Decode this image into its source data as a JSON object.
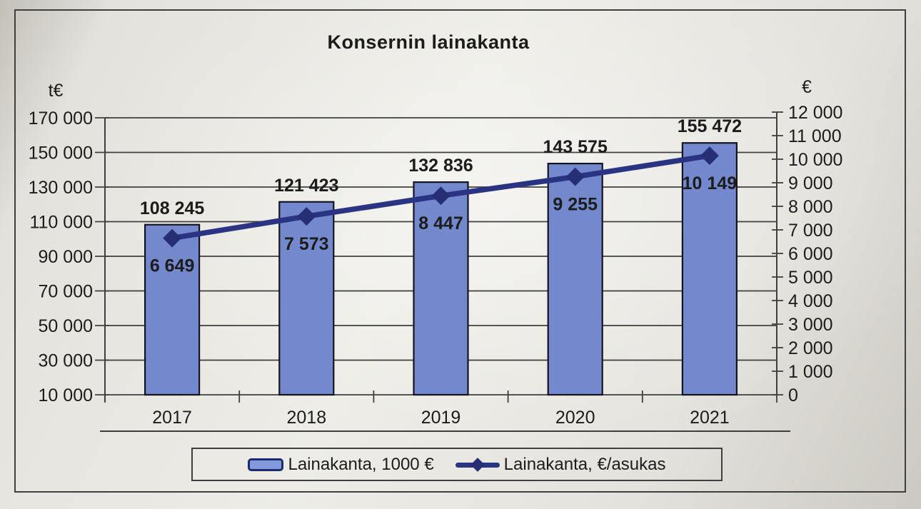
{
  "chart_data": {
    "type": "combo-bar-line",
    "title": "Konsernin lainakanta",
    "categories": [
      "2017",
      "2018",
      "2019",
      "2020",
      "2021"
    ],
    "series": [
      {
        "name": "Lainakanta, 1000 €",
        "type": "bar",
        "axis": "left",
        "values": [
          108245,
          121423,
          132836,
          143575,
          155472
        ],
        "value_labels": [
          "108 245",
          "121 423",
          "132 836",
          "143 575",
          "155 472"
        ]
      },
      {
        "name": "Lainakanta, €/asukas",
        "type": "line",
        "axis": "right",
        "values": [
          6649,
          7573,
          8447,
          9255,
          10149
        ],
        "value_labels": [
          "6 649",
          "7 573",
          "8 447",
          "9 255",
          "10 149"
        ]
      }
    ],
    "left_axis": {
      "unit": "t€",
      "min": 10000,
      "max": 170000,
      "step": 20000,
      "tick_labels": [
        "170 000",
        "150 000",
        "130 000",
        "110 000",
        "90 000",
        "70 000",
        "50 000",
        "30 000",
        "10 000"
      ]
    },
    "right_axis": {
      "unit": "€",
      "min": 0,
      "max": 12000,
      "step": 1000,
      "tick_labels": [
        "12 000",
        "11 000",
        "10 000",
        "9 000",
        "8 000",
        "7 000",
        "6 000",
        "5 000",
        "4 000",
        "3 000",
        "2 000",
        "1 000",
        "0"
      ]
    },
    "legend": {
      "position": "bottom",
      "items": [
        "Lainakanta, 1000 €",
        "Lainakanta, €/asukas"
      ]
    },
    "grid": "horizontal",
    "colors": {
      "bar_fill": "#7489cd",
      "bar_stroke": "#141420",
      "line": "#2b3482",
      "marker": "#272f74",
      "text": "#1c1c1c",
      "grid_line": "#3f3f3f",
      "legend_swatch_fill": "#8499dd",
      "legend_swatch_border": "#1c2a6e"
    }
  }
}
